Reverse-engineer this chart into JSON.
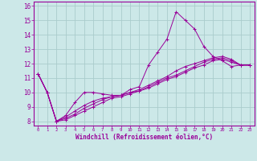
{
  "xlabel": "Windchill (Refroidissement éolien,°C)",
  "xlim": [
    -0.5,
    23.5
  ],
  "ylim": [
    7.7,
    16.3
  ],
  "yticks": [
    8,
    9,
    10,
    11,
    12,
    13,
    14,
    15,
    16
  ],
  "xticks": [
    0,
    1,
    2,
    3,
    4,
    5,
    6,
    7,
    8,
    9,
    10,
    11,
    12,
    13,
    14,
    15,
    16,
    17,
    18,
    19,
    20,
    21,
    22,
    23
  ],
  "background_color": "#cce8e8",
  "line_color": "#990099",
  "grid_color": "#aacccc",
  "lines": [
    {
      "x": [
        0,
        1,
        2,
        3,
        4,
        5,
        6,
        7,
        8,
        9,
        10,
        11,
        12,
        13,
        14,
        15,
        16,
        17,
        18,
        19,
        20,
        21,
        22,
        23
      ],
      "y": [
        11.3,
        10.0,
        8.0,
        8.4,
        9.3,
        10.0,
        10.0,
        9.9,
        9.8,
        9.8,
        10.2,
        10.4,
        11.9,
        12.8,
        13.7,
        15.6,
        15.0,
        14.4,
        13.2,
        12.5,
        12.2,
        11.8,
        11.9,
        11.9
      ]
    },
    {
      "x": [
        0,
        1,
        2,
        3,
        4,
        5,
        6,
        7,
        8,
        9,
        10,
        11,
        12,
        13,
        14,
        15,
        16,
        17,
        18,
        19,
        20,
        21,
        22,
        23
      ],
      "y": [
        11.3,
        10.0,
        8.0,
        8.3,
        8.7,
        9.1,
        9.4,
        9.6,
        9.7,
        9.8,
        10.0,
        10.2,
        10.5,
        10.8,
        11.1,
        11.5,
        11.8,
        12.0,
        12.2,
        12.4,
        12.5,
        12.3,
        11.9,
        11.9
      ]
    },
    {
      "x": [
        0,
        1,
        2,
        3,
        4,
        5,
        6,
        7,
        8,
        9,
        10,
        11,
        12,
        13,
        14,
        15,
        16,
        17,
        18,
        19,
        20,
        21,
        22,
        23
      ],
      "y": [
        11.3,
        10.0,
        8.0,
        8.2,
        8.5,
        8.9,
        9.2,
        9.5,
        9.7,
        9.8,
        10.0,
        10.1,
        10.4,
        10.7,
        11.0,
        11.2,
        11.5,
        11.8,
        12.1,
        12.3,
        12.4,
        12.2,
        11.9,
        11.9
      ]
    },
    {
      "x": [
        0,
        1,
        2,
        3,
        4,
        5,
        6,
        7,
        8,
        9,
        10,
        11,
        12,
        13,
        14,
        15,
        16,
        17,
        18,
        19,
        20,
        21,
        22,
        23
      ],
      "y": [
        11.3,
        10.0,
        8.0,
        8.1,
        8.4,
        8.7,
        9.0,
        9.3,
        9.6,
        9.7,
        9.9,
        10.1,
        10.3,
        10.6,
        10.9,
        11.1,
        11.4,
        11.7,
        11.9,
        12.2,
        12.3,
        12.1,
        11.9,
        11.9
      ]
    }
  ]
}
